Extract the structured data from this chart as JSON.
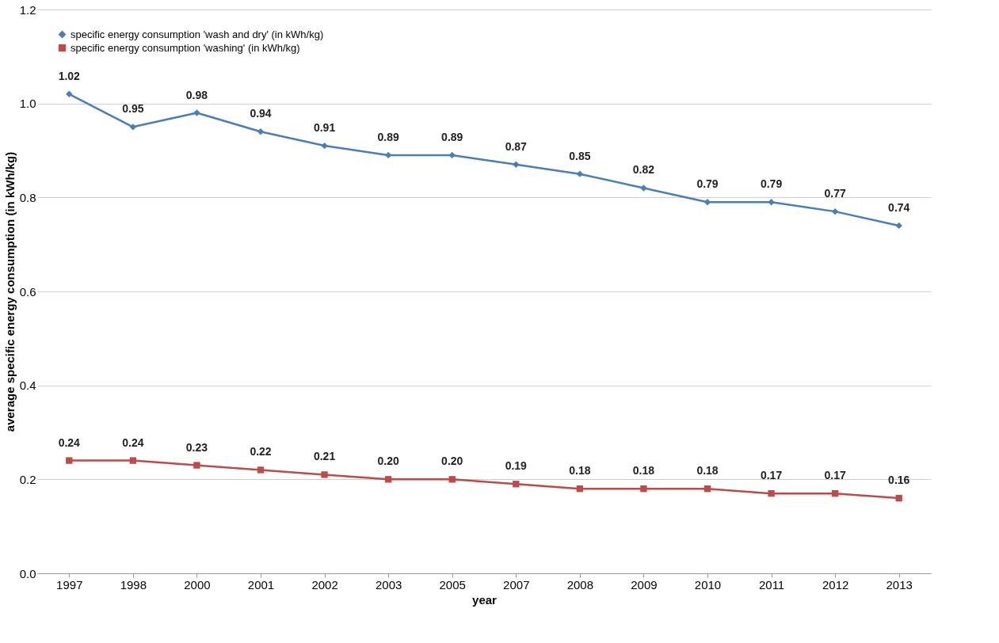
{
  "chart_data": {
    "type": "line",
    "xlabel": "year",
    "ylabel": "average specific energy consumption (in kWh/kg)",
    "categories": [
      "1997",
      "1998",
      "2000",
      "2001",
      "2002",
      "2003",
      "2005",
      "2007",
      "2008",
      "2009",
      "2010",
      "2011",
      "2012",
      "2013"
    ],
    "series": [
      {
        "name": "specific energy consumption 'wash and dry' (in kWh/kg)",
        "color": "#4a7ebb",
        "marker": "diamond",
        "values": [
          1.02,
          0.95,
          0.98,
          0.94,
          0.91,
          0.89,
          0.89,
          0.87,
          0.85,
          0.82,
          0.79,
          0.79,
          0.77,
          0.74
        ],
        "value_labels": [
          "1.02",
          "0.95",
          "0.98",
          "0.94",
          "0.91",
          "0.89",
          "0.89",
          "0.87",
          "0.85",
          "0.82",
          "0.79",
          "0.79",
          "0.77",
          "0.74"
        ]
      },
      {
        "name": "specific energy consumption 'washing' (in kWh/kg)",
        "color": "#be4b48",
        "marker": "square",
        "values": [
          0.24,
          0.24,
          0.23,
          0.22,
          0.21,
          0.2,
          0.2,
          0.19,
          0.18,
          0.18,
          0.18,
          0.17,
          0.17,
          0.16
        ],
        "value_labels": [
          "0.24",
          "0.24",
          "0.23",
          "0.22",
          "0.21",
          "0.20",
          "0.20",
          "0.19",
          "0.18",
          "0.18",
          "0.18",
          "0.17",
          "0.17",
          "0.16"
        ]
      }
    ],
    "ylim": [
      0,
      1.2
    ],
    "yticks": [
      {
        "value": 0,
        "label": "0.0"
      },
      0.2,
      0.4,
      0.6,
      0.8,
      {
        "value": 1,
        "label": "1.0"
      },
      1.2
    ],
    "grid": "y",
    "legend": "top left"
  }
}
